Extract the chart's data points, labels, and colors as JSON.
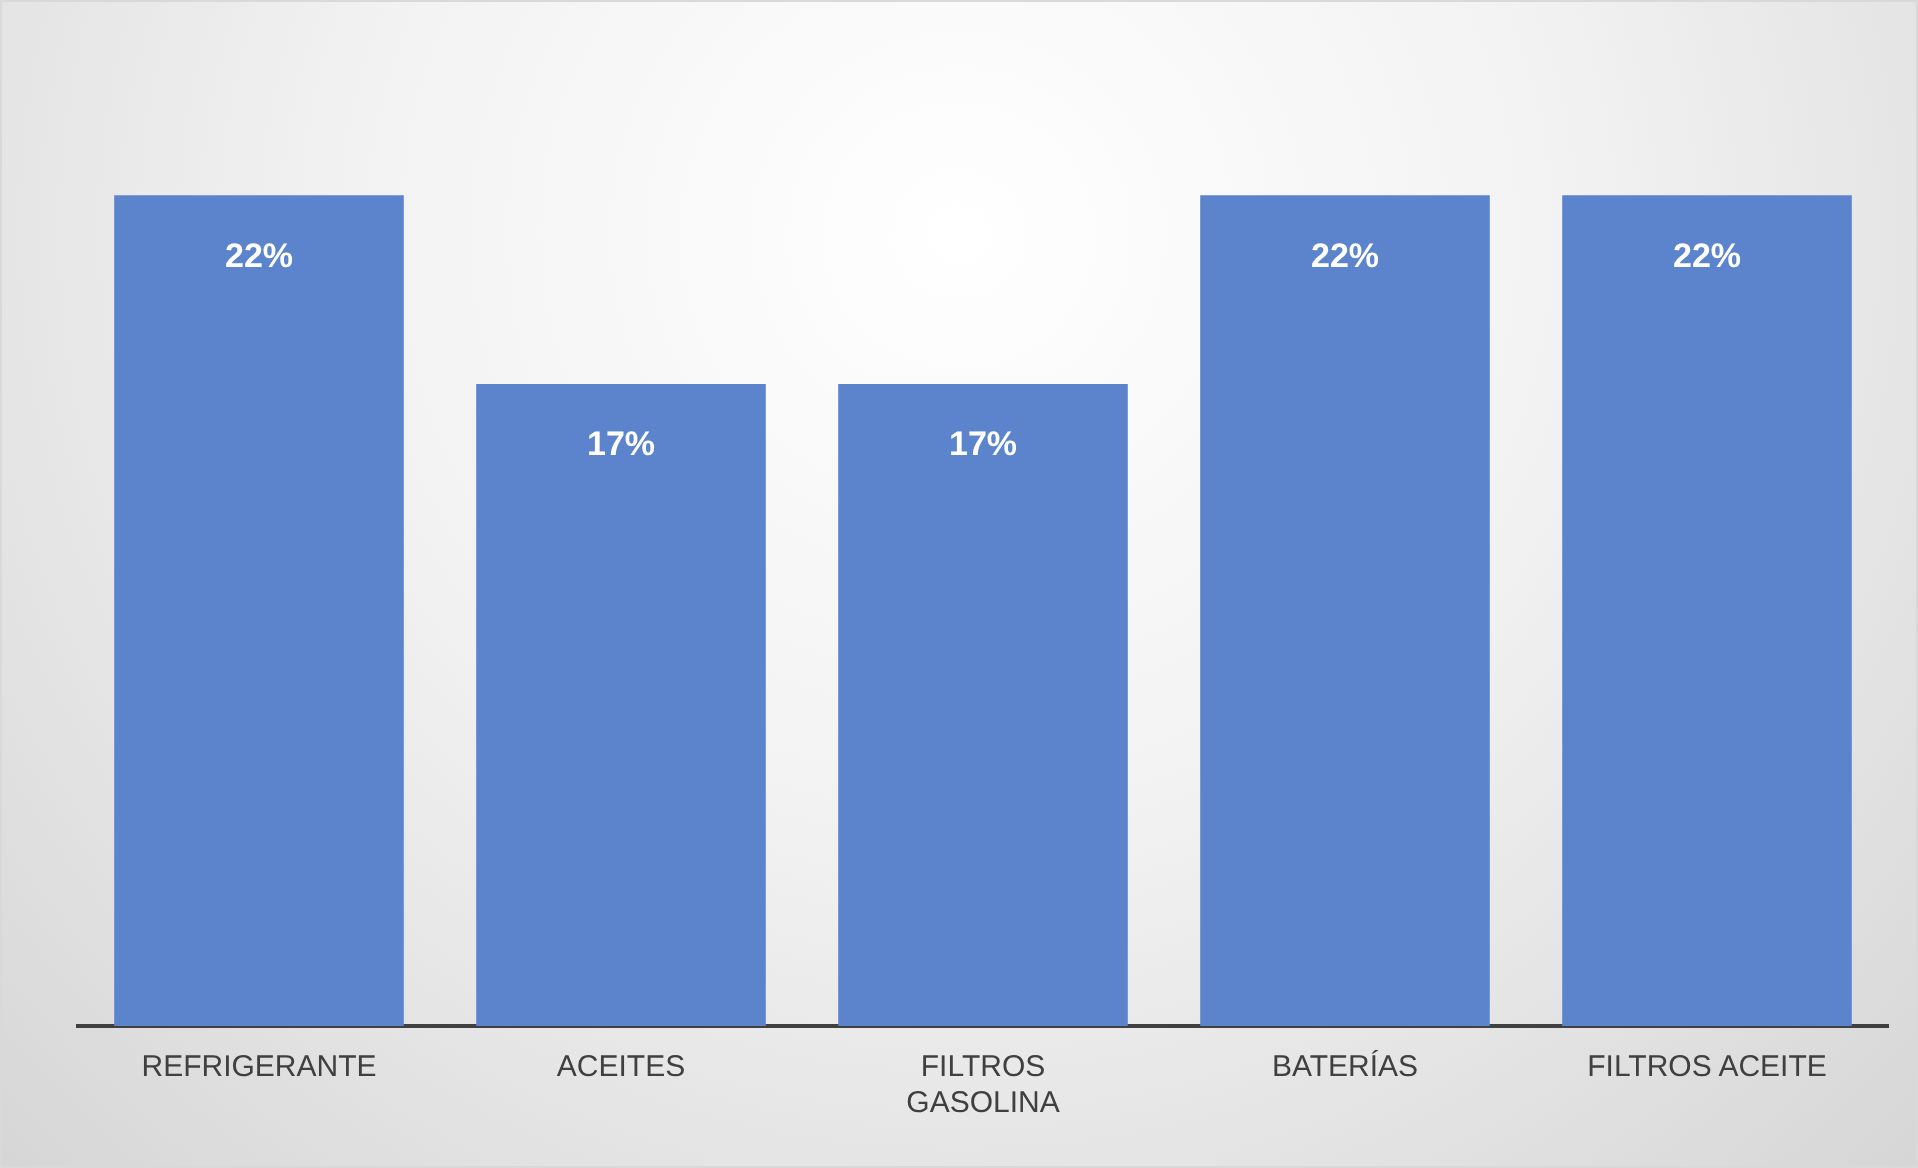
{
  "chart_data": {
    "type": "bar",
    "categories": [
      "REFRIGERANTE",
      "ACEITES",
      "FILTROS GASOLINA",
      "BATERÍAS",
      "FILTROS ACEITE"
    ],
    "values": [
      22,
      17,
      17,
      22,
      22
    ],
    "value_labels": [
      "22%",
      "17%",
      "17%",
      "22%",
      "22%"
    ],
    "color": "#5b84cc"
  }
}
